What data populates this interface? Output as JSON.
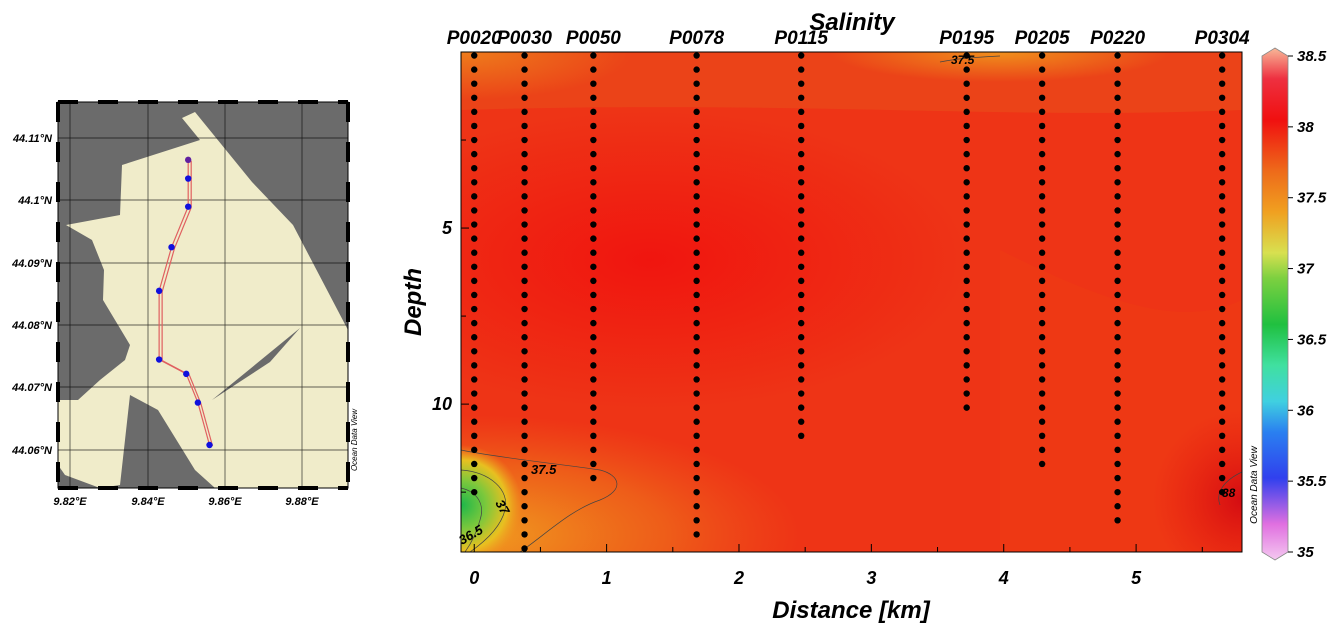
{
  "map": {
    "lat_ticks": [
      "44.11°N",
      "44.1°N",
      "44.09°N",
      "44.08°N",
      "44.07°N",
      "44.06°N"
    ],
    "lon_ticks": [
      "9.82°E",
      "9.84°E",
      "9.86°E",
      "9.88°E"
    ],
    "watermark": "Ocean Data View",
    "colors": {
      "land": "#6b6b6b",
      "sea": "#f0ecca",
      "station": "#1010dd",
      "track": "#e06060"
    },
    "stations": [
      {
        "lon": 9.8505,
        "lat": 44.1065
      },
      {
        "lon": 9.8505,
        "lat": 44.1035
      },
      {
        "lon": 9.8505,
        "lat": 44.099
      },
      {
        "lon": 9.8462,
        "lat": 44.0925
      },
      {
        "lon": 9.843,
        "lat": 44.0855
      },
      {
        "lon": 9.843,
        "lat": 44.0745
      },
      {
        "lon": 9.85,
        "lat": 44.0722
      },
      {
        "lon": 9.853,
        "lat": 44.0676
      },
      {
        "lon": 9.856,
        "lat": 44.0608
      }
    ]
  },
  "chart_data": {
    "type": "heatmap",
    "title": "Salinity",
    "xlabel": "Distance [km]",
    "ylabel": "Depth",
    "xlim": [
      -0.1,
      5.8
    ],
    "ylim": [
      14.2,
      0
    ],
    "x_ticks": [
      "0",
      "1",
      "2",
      "3",
      "4",
      "5"
    ],
    "y_ticks": [
      "5",
      "10"
    ],
    "colorbar": {
      "ticks": [
        "38.5",
        "38",
        "37.5",
        "37",
        "36.5",
        "36",
        "35.5",
        "35"
      ],
      "min": 35,
      "max": 38.5,
      "watermark": "Ocean Data View"
    },
    "contour_labels": [
      "37.5",
      "37",
      "36.5",
      "37.5",
      "38"
    ],
    "stations": [
      {
        "name": "P0020",
        "x": 0.0,
        "max_depth": 12.5
      },
      {
        "name": "P0030",
        "x": 0.38,
        "max_depth": 14.2
      },
      {
        "name": "P0050",
        "x": 0.9,
        "max_depth": 12.2
      },
      {
        "name": "P0078",
        "x": 1.68,
        "max_depth": 13.7
      },
      {
        "name": "P0115",
        "x": 2.47,
        "max_depth": 10.9
      },
      {
        "name": "P0195",
        "x": 3.72,
        "max_depth": 10.2
      },
      {
        "name": "P0205",
        "x": 4.29,
        "max_depth": 11.7
      },
      {
        "name": "P0220",
        "x": 4.86,
        "max_depth": 13.6
      },
      {
        "name": "P0304",
        "x": 5.65,
        "max_depth": 12.5
      }
    ]
  }
}
